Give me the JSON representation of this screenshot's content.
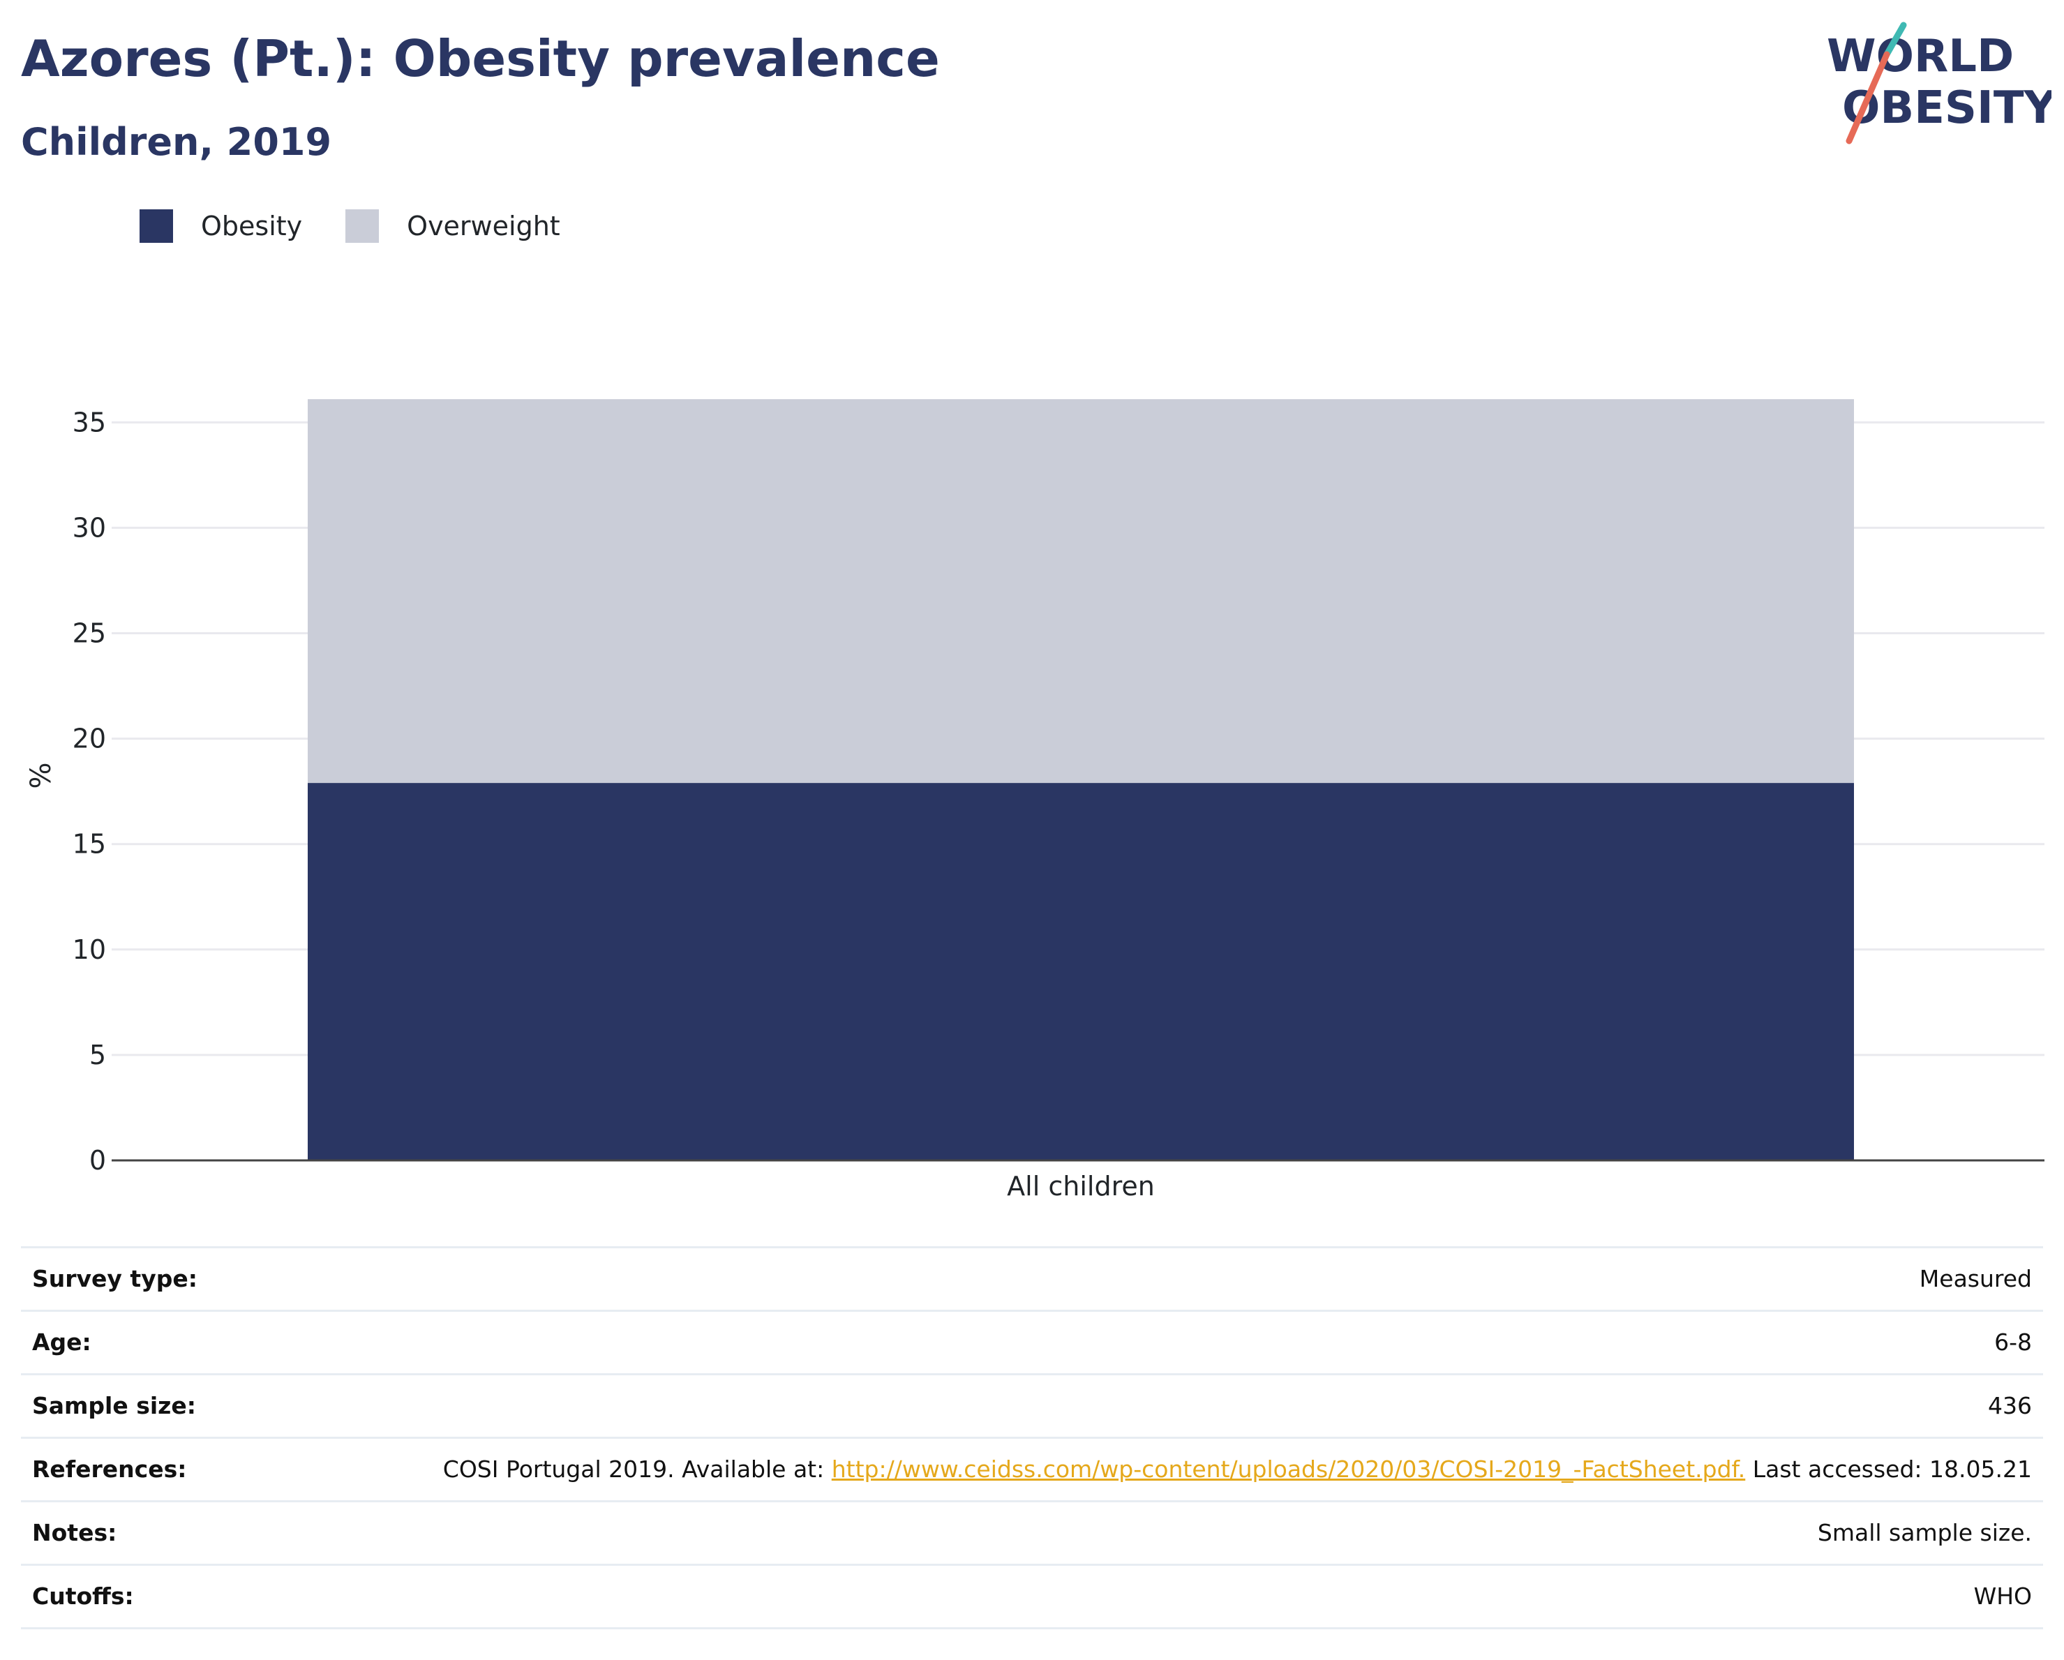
{
  "title": "Azores (Pt.): Obesity prevalence",
  "subtitle": "Children, 2019",
  "logo": {
    "line1": "WORLD",
    "line2": "OBESITY"
  },
  "colors": {
    "obesity": "#2a3663",
    "overweight": "#cacdd8",
    "title": "#2a3663",
    "link": "#e5a81b",
    "logo_slash_teal": "#3fb9b3",
    "logo_slash_coral": "#e66a57"
  },
  "chart_data": {
    "type": "bar",
    "stacked": true,
    "categories": [
      "All children"
    ],
    "series": [
      {
        "name": "Obesity",
        "values": [
          17.9
        ],
        "color": "#2a3663"
      },
      {
        "name": "Overweight",
        "values": [
          18.2
        ],
        "color": "#cacdd8"
      }
    ],
    "ylabel": "%",
    "xlabel": "",
    "ylim": [
      0,
      36.5
    ],
    "yticks": [
      0,
      5,
      10,
      15,
      20,
      25,
      30,
      35
    ],
    "grid": true,
    "legend": "top-left"
  },
  "info": {
    "survey_type_label": "Survey type:",
    "survey_type_value": "Measured",
    "age_label": "Age:",
    "age_value": "6-8",
    "sample_label": "Sample size:",
    "sample_value": "436",
    "references_label": "References:",
    "references_prefix": "COSI Portugal 2019. Available at: ",
    "references_link": "http://www.ceidss.com/wp-content/uploads/2020/03/COSI-2019_-FactSheet.pdf.",
    "references_suffix": " Last accessed: 18.05.21",
    "notes_label": "Notes:",
    "notes_value": "Small sample size.",
    "cutoffs_label": "Cutoffs:",
    "cutoffs_value": "WHO"
  }
}
